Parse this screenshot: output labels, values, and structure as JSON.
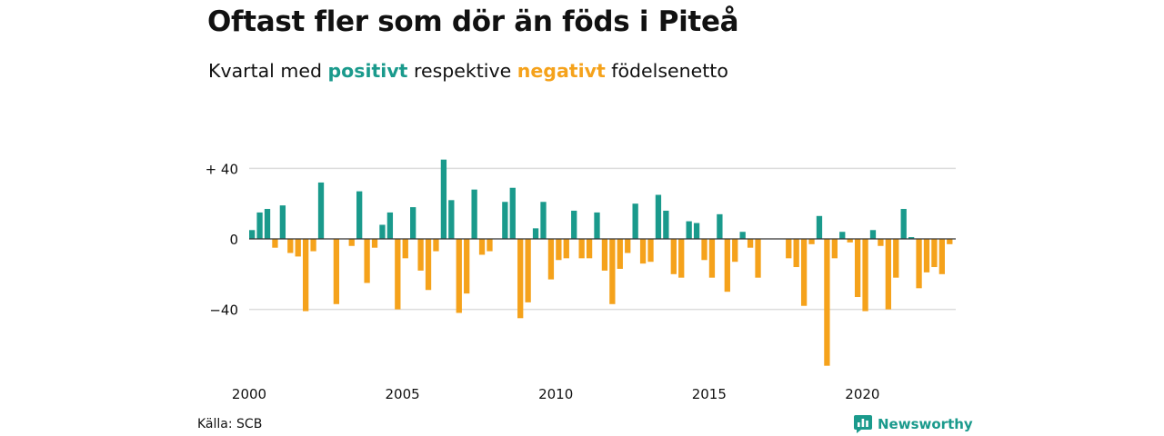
{
  "header": {
    "title": "Oftast fler som dör än föds i Piteå",
    "subtitle_pre": "Kvartal med ",
    "subtitle_pos": "positivt",
    "subtitle_mid": " respektive ",
    "subtitle_neg": "negativt",
    "subtitle_post": " födelsenetto"
  },
  "footer": {
    "source": "Källa: SCB",
    "brand": "Newsworthy",
    "brand_icon": "newsworthy-logo-icon"
  },
  "colors": {
    "positive": "#1a9a8c",
    "negative": "#f5a21b",
    "grid": "#dddddd",
    "zero_line": "#333333"
  },
  "chart_data": {
    "type": "bar",
    "title": "Oftast fler som dör än föds i Piteå",
    "subtitle": "Kvartal med positivt respektive negativt födelsenetto",
    "xlabel": "",
    "ylabel": "",
    "x_start": 2000,
    "periods_per_year": 4,
    "x_ticks": [
      2000,
      2005,
      2010,
      2015,
      2020
    ],
    "y_ticks": [
      {
        "value": 40,
        "label": "+ 40"
      },
      {
        "value": 0,
        "label": "0"
      },
      {
        "value": -40,
        "label": "−40"
      }
    ],
    "ylim": [
      -72,
      48
    ],
    "grid": true,
    "legend": "none",
    "values": [
      5,
      15,
      17,
      -5,
      19,
      -8,
      -10,
      -41,
      -7,
      32,
      0,
      -37,
      0,
      -4,
      27,
      -25,
      -5,
      8,
      15,
      -40,
      -11,
      18,
      -18,
      -29,
      -7,
      45,
      22,
      -42,
      -31,
      28,
      -9,
      -7,
      0,
      21,
      29,
      -45,
      -36,
      6,
      21,
      -23,
      -12,
      -11,
      16,
      -11,
      -11,
      15,
      -18,
      -37,
      -17,
      -8,
      20,
      -14,
      -13,
      25,
      16,
      -20,
      -22,
      10,
      9,
      -12,
      -22,
      14,
      -30,
      -13,
      4,
      -5,
      -22,
      0,
      0,
      0,
      -11,
      -16,
      -38,
      -3,
      13,
      -72,
      -11,
      4,
      -2,
      -33,
      -41,
      5,
      -4,
      -40,
      -22,
      17,
      1,
      -28,
      -19,
      -16,
      -20,
      -3
    ]
  }
}
